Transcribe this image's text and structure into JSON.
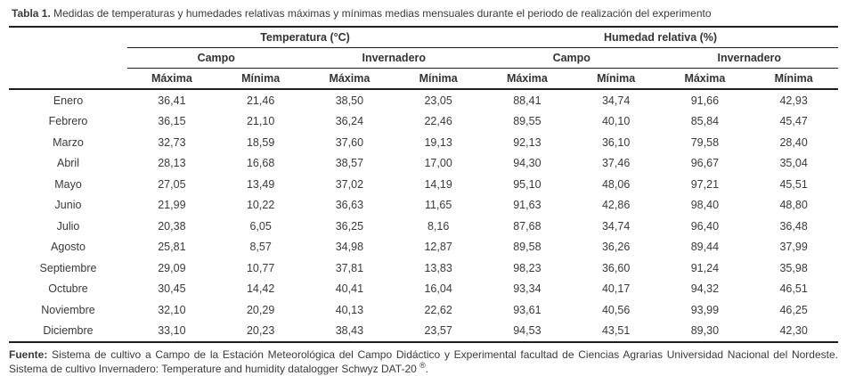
{
  "caption": {
    "label": "Tabla 1.",
    "text": " Medidas de temperaturas y humedades relativas máximas y mínimas medias mensuales durante el periodo de realización del experimento"
  },
  "table": {
    "groups": [
      "Temperatura (°C)",
      "Humedad relativa (%)"
    ],
    "subgroups": [
      "Campo",
      "Invernadero"
    ],
    "measures": [
      "Máxima",
      "Mínima"
    ],
    "rows": [
      {
        "month": "Enero",
        "cells": [
          "36,41",
          "21,46",
          "38,50",
          "23,05",
          "88,41",
          "34,74",
          "91,66",
          "42,93"
        ]
      },
      {
        "month": "Febrero",
        "cells": [
          "36,15",
          "21,10",
          "36,24",
          "22,46",
          "89,55",
          "40,10",
          "85,84",
          "45,47"
        ]
      },
      {
        "month": "Marzo",
        "cells": [
          "32,73",
          "18,59",
          "37,60",
          "19,13",
          "92,13",
          "36,10",
          "79,58",
          "28,40"
        ]
      },
      {
        "month": "Abril",
        "cells": [
          "28,13",
          "16,68",
          "38,57",
          "17,00",
          "94,30",
          "37,46",
          "96,67",
          "35,04"
        ]
      },
      {
        "month": "Mayo",
        "cells": [
          "27,05",
          "13,49",
          "37,02",
          "14,19",
          "95,10",
          "48,06",
          "97,21",
          "45,51"
        ]
      },
      {
        "month": "Junio",
        "cells": [
          "21,99",
          "10,22",
          "36,63",
          "11,65",
          "91,63",
          "42,86",
          "98,40",
          "48,80"
        ]
      },
      {
        "month": "Julio",
        "cells": [
          "20,38",
          "6,05",
          "36,25",
          "8,16",
          "87,68",
          "34,74",
          "96,40",
          "36,48"
        ]
      },
      {
        "month": "Agosto",
        "cells": [
          "25,81",
          "8,57",
          "34,98",
          "12,87",
          "89,58",
          "36,26",
          "89,44",
          "37,99"
        ]
      },
      {
        "month": "Septiembre",
        "cells": [
          "29,09",
          "10,77",
          "37,81",
          "13,83",
          "98,23",
          "36,60",
          "91,24",
          "35,98"
        ]
      },
      {
        "month": "Octubre",
        "cells": [
          "30,45",
          "14,42",
          "40,41",
          "16,04",
          "93,34",
          "40,17",
          "94,32",
          "46,51"
        ]
      },
      {
        "month": "Noviembre",
        "cells": [
          "32,10",
          "20,29",
          "40,13",
          "22,62",
          "93,61",
          "40,56",
          "93,99",
          "46,25"
        ]
      },
      {
        "month": "Diciembre",
        "cells": [
          "33,10",
          "20,23",
          "38,43",
          "23,57",
          "94,53",
          "43,51",
          "89,30",
          "42,30"
        ]
      }
    ]
  },
  "footnote": {
    "label": "Fuente:",
    "text": " Sistema de cultivo a Campo de la Estación Meteorológica del Campo Didáctico y Experimental facultad de Ciencias Agrarias Universidad Nacional del Nordeste. Sistema de cultivo Invernadero: Temperature and humidity datalogger Schwyz DAT-20 ",
    "registered": "®",
    "period": "."
  }
}
